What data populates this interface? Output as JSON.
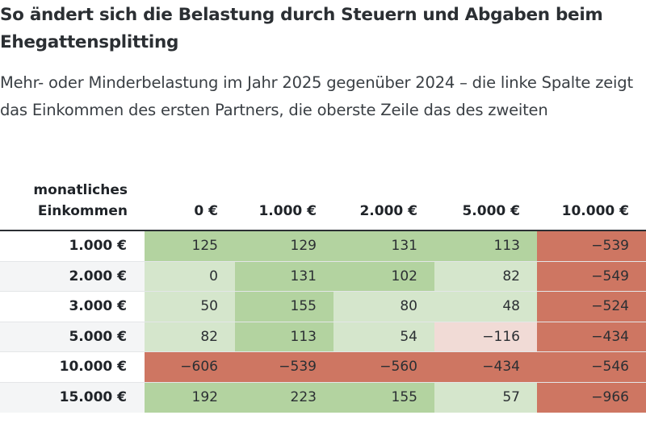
{
  "title": "So ändert sich die Belastung durch Steuern und Abgaben beim Ehegattensplitting",
  "subtitle": "Mehr- oder Minderbelastung im Jahr 2025 gegenüber 2024 – die linke Spalte zeigt das Einkommen des ersten Partners, die oberste Zeile das des zweiten",
  "colors": {
    "strong_positive": "#b3d3a0",
    "weak_positive": "#d5e6cc",
    "weak_negative": "#f1dbd6",
    "strong_negative": "#ce7662"
  },
  "chart_data": {
    "type": "table",
    "corner_label": "monatliches Einkommen",
    "columns": [
      "0 €",
      "1.000 €",
      "2.000 €",
      "5.000 €",
      "10.000 €"
    ],
    "rows": [
      {
        "label": "1.000 €",
        "values": [
          "125",
          "129",
          "131",
          "113",
          "−539"
        ],
        "shade": [
          "strong_positive",
          "strong_positive",
          "strong_positive",
          "strong_positive",
          "strong_negative"
        ]
      },
      {
        "label": "2.000 €",
        "values": [
          "0",
          "131",
          "102",
          "82",
          "−549"
        ],
        "shade": [
          "weak_positive",
          "strong_positive",
          "strong_positive",
          "weak_positive",
          "strong_negative"
        ]
      },
      {
        "label": "3.000 €",
        "values": [
          "50",
          "155",
          "80",
          "48",
          "−524"
        ],
        "shade": [
          "weak_positive",
          "strong_positive",
          "weak_positive",
          "weak_positive",
          "strong_negative"
        ]
      },
      {
        "label": "5.000 €",
        "values": [
          "82",
          "113",
          "54",
          "−116",
          "−434"
        ],
        "shade": [
          "weak_positive",
          "strong_positive",
          "weak_positive",
          "weak_negative",
          "strong_negative"
        ]
      },
      {
        "label": "10.000 €",
        "values": [
          "−606",
          "−539",
          "−560",
          "−434",
          "−546"
        ],
        "shade": [
          "strong_negative",
          "strong_negative",
          "strong_negative",
          "strong_negative",
          "strong_negative"
        ]
      },
      {
        "label": "15.000 €",
        "values": [
          "192",
          "223",
          "155",
          "57",
          "−966"
        ],
        "shade": [
          "strong_positive",
          "strong_positive",
          "strong_positive",
          "weak_positive",
          "strong_negative"
        ]
      }
    ]
  }
}
